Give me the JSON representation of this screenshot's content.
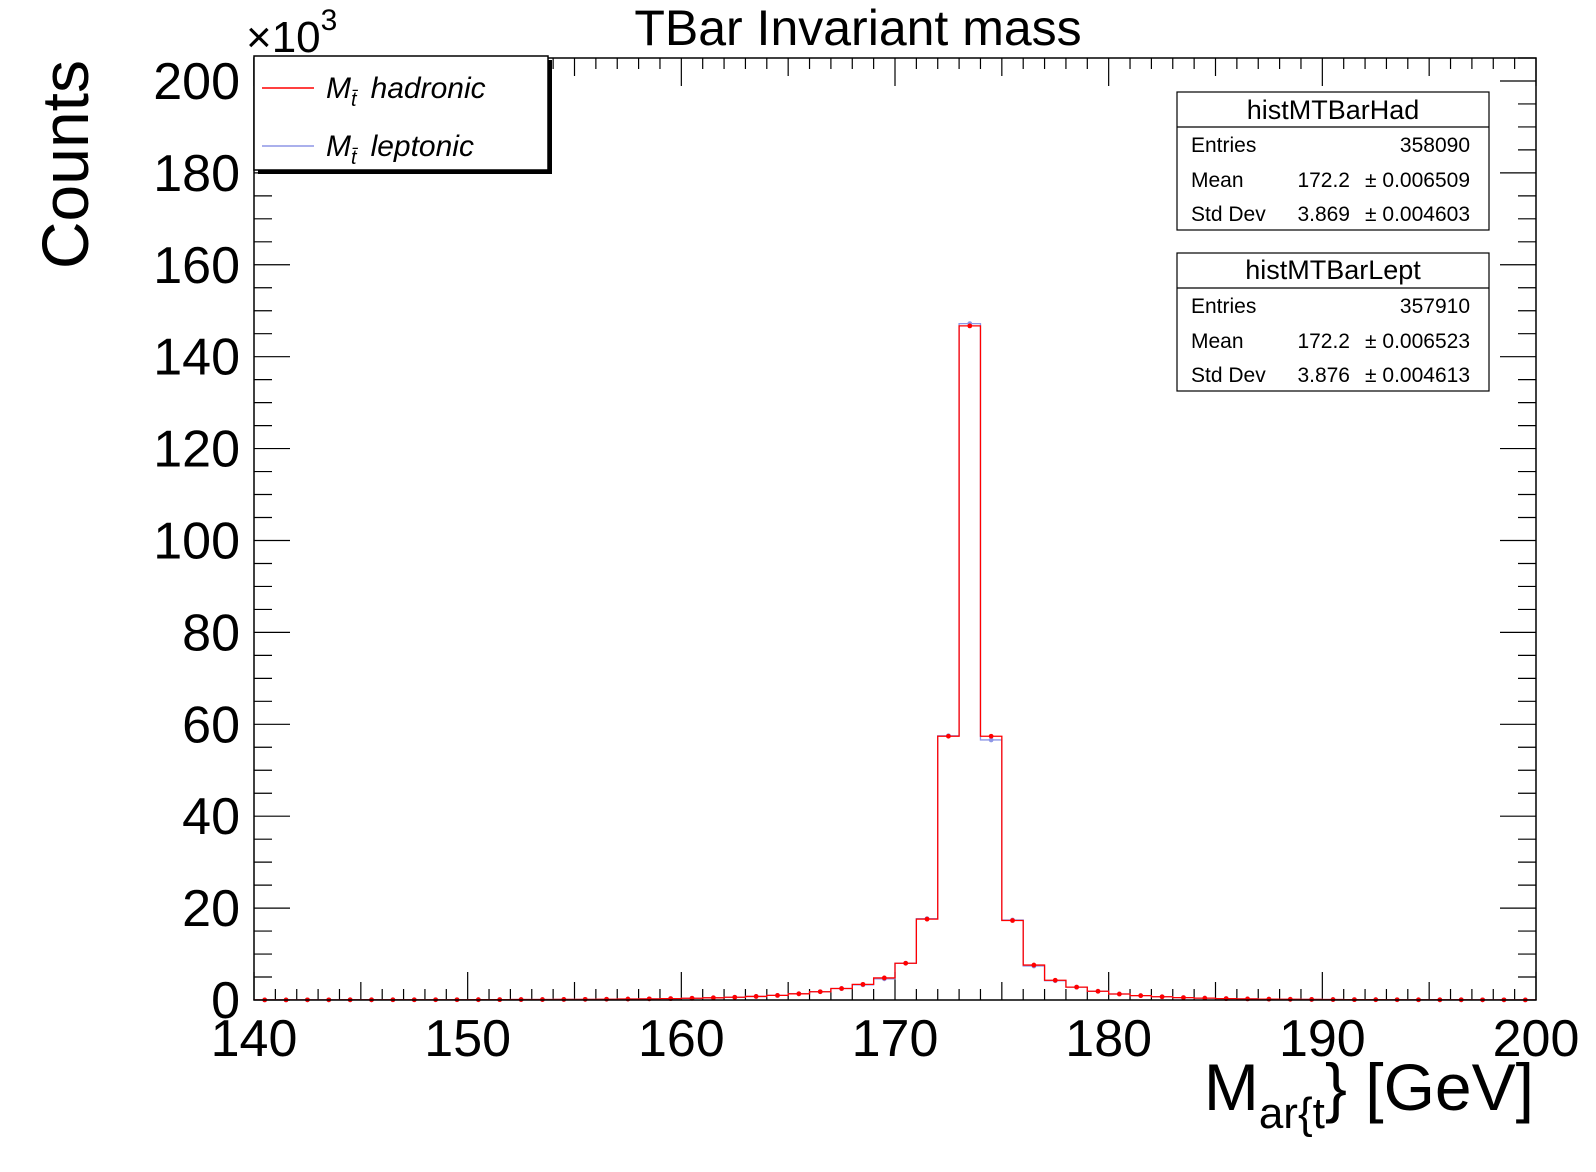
{
  "chart_data": {
    "type": "histogram",
    "title": "TBar Invariant mass",
    "xlabel_main": "M",
    "xlabel_sub": "ar{t",
    "xlabel_tail": "} [GeV]",
    "ylabel": "Counts",
    "y_multiplier_base": "×10",
    "y_multiplier_exp": "3",
    "xlim": [
      140,
      200
    ],
    "ylim": [
      0,
      205
    ],
    "x_ticks": [
      "140",
      "150",
      "160",
      "170",
      "180",
      "190",
      "200"
    ],
    "y_ticks": [
      "0",
      "20",
      "40",
      "60",
      "80",
      "100",
      "120",
      "140",
      "160",
      "180",
      "200"
    ],
    "bin_start": 140,
    "bin_width": 1,
    "series": [
      {
        "name_symbol": "M",
        "name_sub": "t̄",
        "name": "hadronic",
        "color": "#ff0000",
        "values": [
          0.02,
          0.02,
          0.03,
          0.03,
          0.04,
          0.04,
          0.05,
          0.05,
          0.06,
          0.06,
          0.07,
          0.08,
          0.09,
          0.1,
          0.12,
          0.14,
          0.17,
          0.2,
          0.25,
          0.3,
          0.38,
          0.48,
          0.6,
          0.78,
          1.0,
          1.35,
          1.8,
          2.5,
          3.4,
          4.8,
          8.0,
          17.6,
          57.4,
          146.7,
          57.4,
          17.3,
          7.6,
          4.3,
          2.8,
          1.9,
          1.3,
          0.95,
          0.7,
          0.52,
          0.4,
          0.3,
          0.24,
          0.19,
          0.15,
          0.12,
          0.1,
          0.08,
          0.07,
          0.06,
          0.05,
          0.04,
          0.04,
          0.03,
          0.03,
          0.02
        ]
      },
      {
        "name_symbol": "M",
        "name_sub": "t̄",
        "name": "leptonic",
        "color": "#8e96e6",
        "values": [
          0.02,
          0.02,
          0.03,
          0.03,
          0.04,
          0.04,
          0.05,
          0.05,
          0.06,
          0.06,
          0.07,
          0.08,
          0.09,
          0.1,
          0.12,
          0.14,
          0.17,
          0.2,
          0.25,
          0.3,
          0.38,
          0.48,
          0.6,
          0.78,
          1.0,
          1.35,
          1.8,
          2.5,
          3.3,
          4.6,
          8.0,
          17.7,
          57.5,
          147.2,
          56.6,
          17.4,
          7.4,
          4.2,
          2.8,
          1.9,
          1.3,
          0.95,
          0.7,
          0.52,
          0.4,
          0.3,
          0.24,
          0.19,
          0.15,
          0.12,
          0.1,
          0.08,
          0.07,
          0.06,
          0.05,
          0.04,
          0.04,
          0.03,
          0.03,
          0.02
        ]
      }
    ],
    "stats_boxes": [
      {
        "title": "histMTBarHad",
        "rows": [
          {
            "label": "Entries",
            "value": "358090",
            "error": ""
          },
          {
            "label": "Mean",
            "value": "172.2",
            "error": "± 0.006509"
          },
          {
            "label": "Std Dev",
            "value": "3.869",
            "error": "± 0.004603"
          }
        ]
      },
      {
        "title": "histMTBarLept",
        "rows": [
          {
            "label": "Entries",
            "value": "357910",
            "error": ""
          },
          {
            "label": "Mean",
            "value": "172.2",
            "error": "± 0.006523"
          },
          {
            "label": "Std Dev",
            "value": "3.876",
            "error": "± 0.004613"
          }
        ]
      }
    ]
  }
}
